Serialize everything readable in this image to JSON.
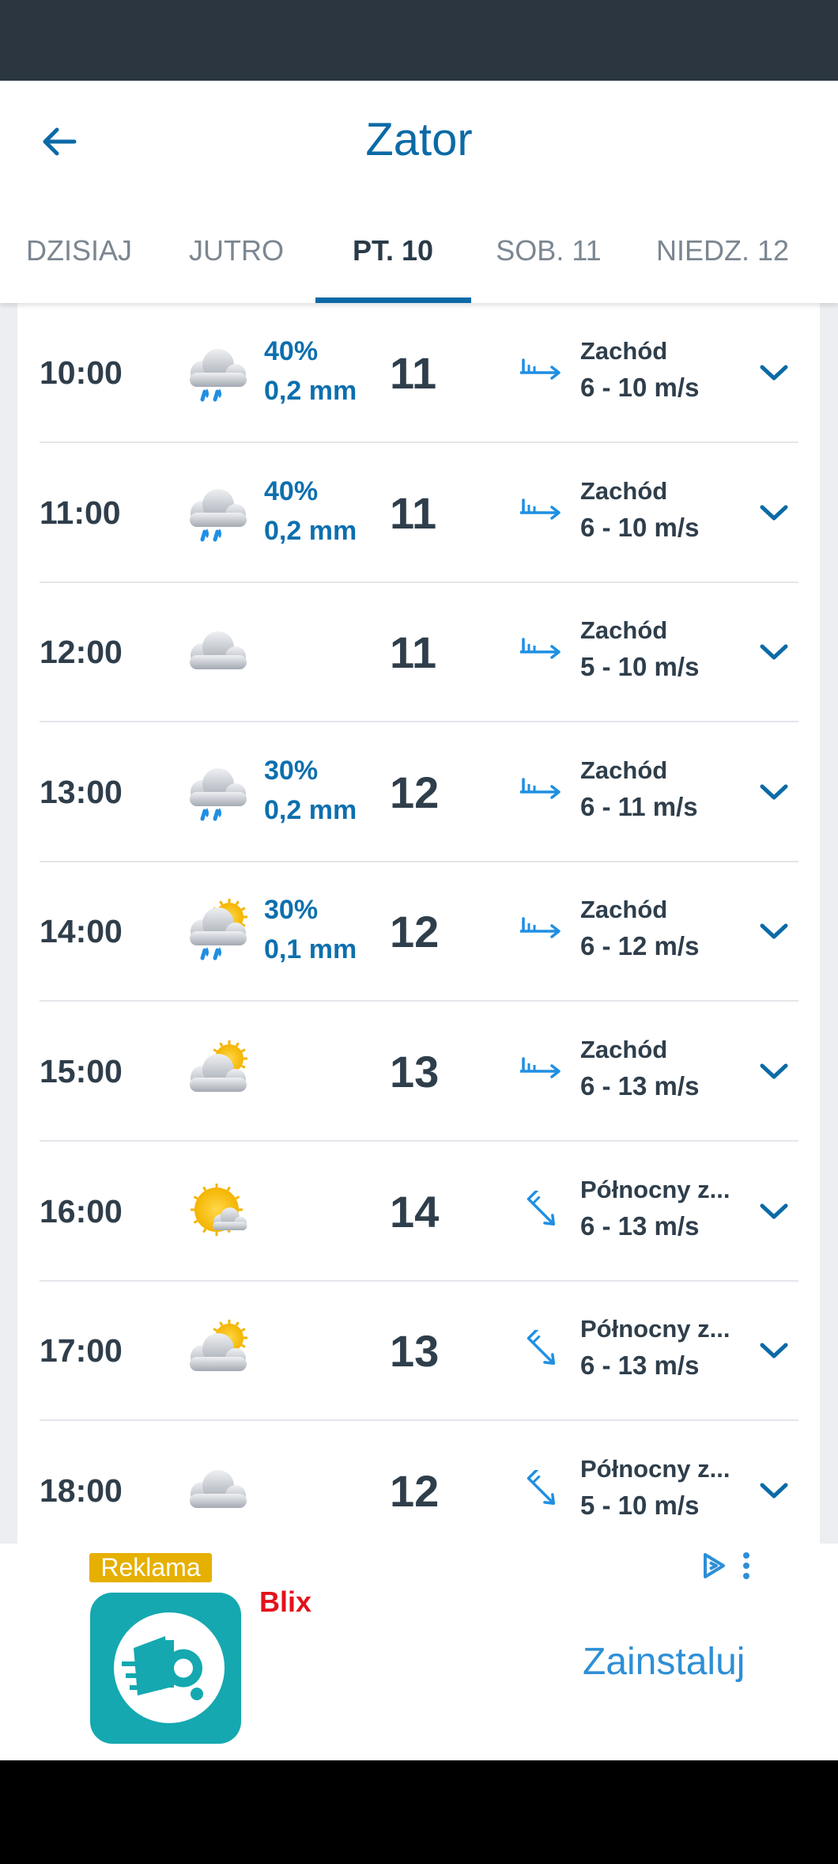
{
  "header": {
    "title": "Zator"
  },
  "tabs": [
    "DZISIAJ",
    "JUTRO",
    "PT. 10",
    "SOB. 11",
    "NIEDZ. 12"
  ],
  "active_tab": 2,
  "rows": [
    {
      "time": "10:00",
      "weather_icon": "rain",
      "precip_chance": "40%",
      "precip_amount": "0,2 mm",
      "temp": 11,
      "wind_icon": "west",
      "wind_direction": "Zachód",
      "wind_speed": "6 - 10 m/s"
    },
    {
      "time": "11:00",
      "weather_icon": "rain",
      "precip_chance": "40%",
      "precip_amount": "0,2 mm",
      "temp": 11,
      "wind_icon": "west",
      "wind_direction": "Zachód",
      "wind_speed": "6 - 10 m/s"
    },
    {
      "time": "12:00",
      "weather_icon": "cloud",
      "temp": 11,
      "wind_icon": "west",
      "wind_direction": "Zachód",
      "wind_speed": "5 - 10 m/s"
    },
    {
      "time": "13:00",
      "weather_icon": "rain",
      "precip_chance": "30%",
      "precip_amount": "0,2 mm",
      "temp": 12,
      "wind_icon": "west",
      "wind_direction": "Zachód",
      "wind_speed": "6 - 11 m/s"
    },
    {
      "time": "14:00",
      "weather_icon": "sun-rain",
      "precip_chance": "30%",
      "precip_amount": "0,1 mm",
      "temp": 12,
      "wind_icon": "west",
      "wind_direction": "Zachód",
      "wind_speed": "6 - 12 m/s"
    },
    {
      "time": "15:00",
      "weather_icon": "sun-cloud",
      "temp": 13,
      "wind_icon": "west",
      "wind_direction": "Zachód",
      "wind_speed": "6 - 13 m/s"
    },
    {
      "time": "16:00",
      "weather_icon": "sun",
      "temp": 14,
      "wind_icon": "northwest",
      "wind_direction": "Północny z...",
      "wind_speed": "6 - 13 m/s"
    },
    {
      "time": "17:00",
      "weather_icon": "sun-cloud",
      "temp": 13,
      "wind_icon": "northwest",
      "wind_direction": "Północny z...",
      "wind_speed": "6 - 13 m/s"
    },
    {
      "time": "18:00",
      "weather_icon": "cloud",
      "temp": 12,
      "wind_icon": "northwest",
      "wind_direction": "Północny z...",
      "wind_speed": "5 - 10 m/s"
    }
  ],
  "ad": {
    "label": "Reklama",
    "app_name": "Blix",
    "button": "Zainstaluj"
  }
}
